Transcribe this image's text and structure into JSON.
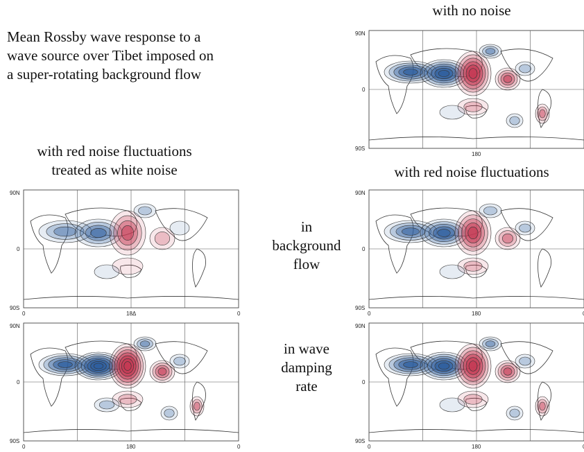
{
  "title_block": {
    "lines": [
      "Mean Rossby wave response to a",
      "wave source over Tibet imposed on",
      "a super-rotating background flow"
    ]
  },
  "headings": {
    "no_noise": "with no noise",
    "white_noise": [
      "with red noise fluctuations",
      "treated as white noise"
    ],
    "red_noise": "with red noise fluctuations"
  },
  "row_labels": {
    "background": [
      "in",
      "background",
      "flow"
    ],
    "damping": [
      "in wave",
      "damping",
      "rate"
    ]
  },
  "axis_labels": {
    "lat_top": "90N",
    "lat_mid": "0",
    "lat_bottom": "90S",
    "lon_left": "0",
    "lon_mid": "180",
    "lon_mid_alt": "18Δ",
    "lon_right": "0"
  },
  "colors": {
    "positive": "#c43a54",
    "negative": "#2f5f9e",
    "grid": "#555555"
  },
  "panels": [
    {
      "id": "no-noise",
      "mid_label": "180",
      "show_lon_edges": false,
      "scheme": "strong"
    },
    {
      "id": "white-bg",
      "mid_label": "18Δ",
      "show_lon_edges": true,
      "scheme": "weak"
    },
    {
      "id": "red-bg",
      "mid_label": "180",
      "show_lon_edges": true,
      "scheme": "medium"
    },
    {
      "id": "white-damp",
      "mid_label": "180",
      "show_lon_edges": true,
      "scheme": "strongest"
    },
    {
      "id": "red-damp",
      "mid_label": "180",
      "show_lon_edges": true,
      "scheme": "strong"
    }
  ]
}
